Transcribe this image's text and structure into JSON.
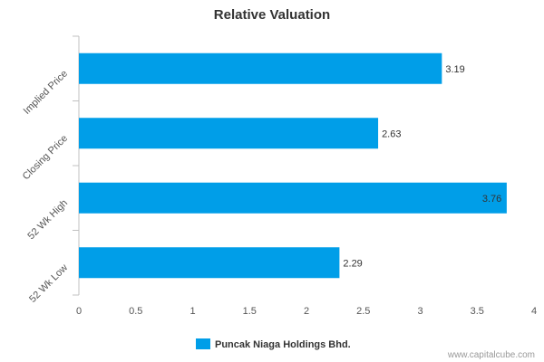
{
  "chart_data": {
    "type": "bar",
    "orientation": "horizontal",
    "title": "Relative Valuation",
    "categories": [
      "Implied Price",
      "Closing Price",
      "52 Wk High",
      "52 Wk Low"
    ],
    "series": [
      {
        "name": "Puncak Niaga Holdings Bhd.",
        "values": [
          3.19,
          2.63,
          3.76,
          2.29
        ]
      }
    ],
    "data_labels": [
      "3.19",
      "2.63",
      "3.76",
      "2.29"
    ],
    "xlim": [
      0,
      4
    ],
    "xticks": [
      "0",
      "0.5",
      "1",
      "1.5",
      "2",
      "2.5",
      "3",
      "3.5",
      "4"
    ],
    "xtick_values": [
      0,
      0.5,
      1,
      1.5,
      2,
      2.5,
      3,
      3.5,
      4
    ],
    "grid": false,
    "legend_position": "bottom-center",
    "bar_color": "#009EE8",
    "axis_color": "#C0C0C0"
  },
  "credit": "www.capitalcube.com"
}
